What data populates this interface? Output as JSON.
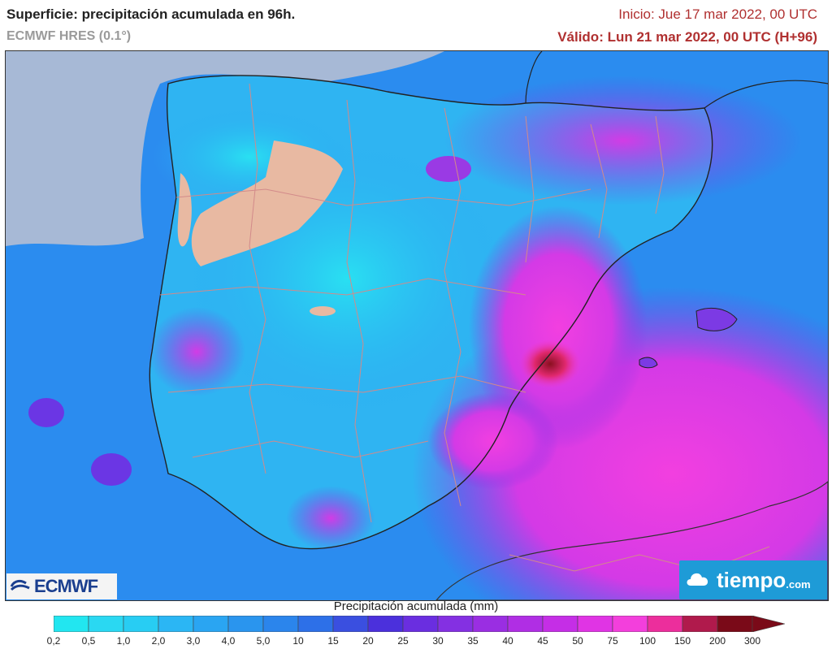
{
  "header": {
    "title": "Superficie: precipitación acumulada en 96h.",
    "model": "ECMWF HRES (0.1°)",
    "init": "Inicio: Jue 17 mar 2022, 00 UTC",
    "valid": "Válido: Lun 21 mar 2022, 00 UTC (H+96)"
  },
  "legend": {
    "title": "Precipitación acumulada (mm)",
    "ticks": [
      "0,2",
      "0,5",
      "1,0",
      "2,0",
      "3,0",
      "4,0",
      "5,0",
      "10",
      "15",
      "20",
      "25",
      "30",
      "35",
      "40",
      "45",
      "50",
      "75",
      "100",
      "150",
      "200",
      "300"
    ],
    "colors": [
      "#22e6f0",
      "#2ad8f2",
      "#28cdf3",
      "#2bb6f4",
      "#2aa5f2",
      "#2a95ee",
      "#2b85ec",
      "#2d70e8",
      "#3a4fe0",
      "#4b30dc",
      "#6a2ee0",
      "#8430e2",
      "#9a2ee2",
      "#b02ee4",
      "#c52ee6",
      "#e034e4",
      "#f33fdc",
      "#ec2e9c",
      "#b01a4c",
      "#7a0a18"
    ]
  },
  "logos": {
    "ecmwf": "ECMWF",
    "tiempo": "tiempo",
    "tiempo_suffix": ".com"
  }
}
